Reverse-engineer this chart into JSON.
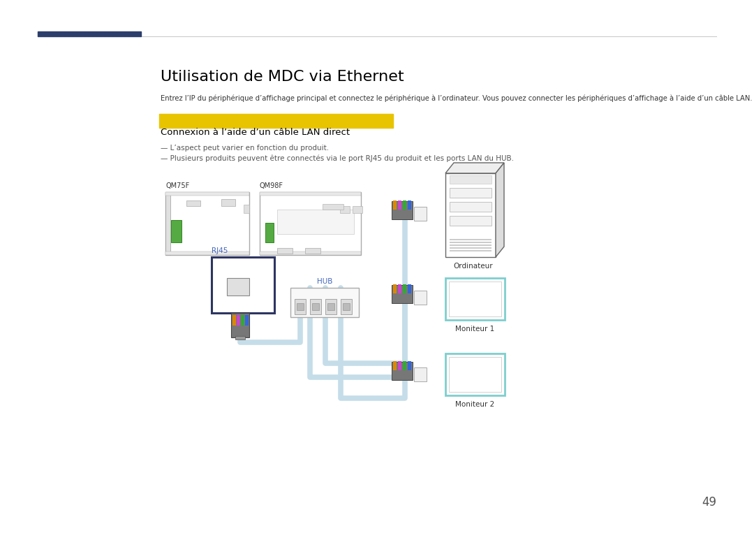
{
  "title": "Utilisation de MDC via Ethernet",
  "subtitle": "Entrez l’IP du périphérique d’affichage principal et connectez le périphérique à l’ordinateur. Vous pouvez connecter les périphériques d’affichage à l’aide d’un câble LAN.",
  "section_title": "Connexion à l’aide d’un câble LAN direct",
  "bullet1": "L’aspect peut varier en fonction du produit.",
  "bullet2": "Plusieurs produits peuvent être connectés via le port RJ45 du produit et les ports LAN du HUB.",
  "label_qm75f": "QM75F",
  "label_qm98f": "QM98F",
  "label_rj45": "RJ45",
  "label_hub": "HUB",
  "label_ordinateur": "Ordinateur",
  "label_moniteur1": "Moniteur 1",
  "label_moniteur2": "Moniteur 2",
  "page_number": "49",
  "bg_color": "#ffffff",
  "title_color": "#000000",
  "section_bg_color": "#e8c400",
  "section_text_color": "#000000",
  "cable_color": "#c5dde8",
  "dark_line_color": "#2d3561",
  "monitor_border_color": "#7ecece",
  "header_bar_color": "#2c3e6b",
  "bullet_color": "#555555",
  "label_color": "#333333",
  "rj45_label_color": "#4466bb"
}
